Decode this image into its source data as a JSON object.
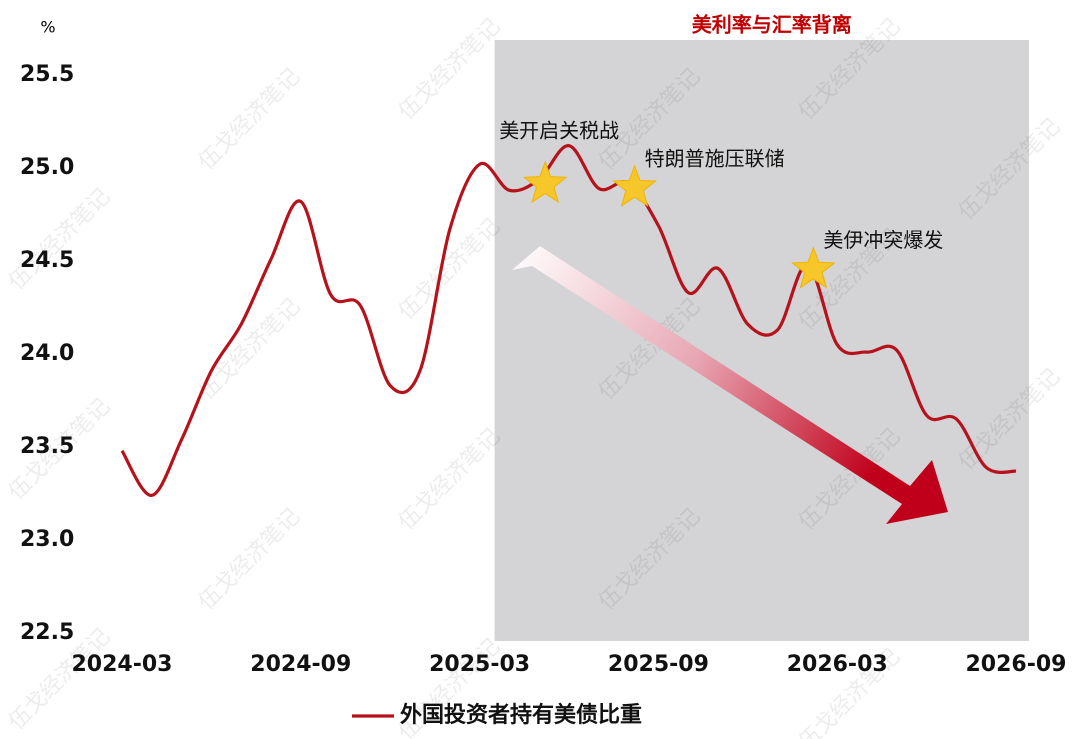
{
  "chart_data": {
    "type": "line",
    "y_unit": "%",
    "x": [
      "2024-03",
      "2024-04",
      "2024-05",
      "2024-06",
      "2024-07",
      "2024-08",
      "2024-09",
      "2024-10",
      "2024-11",
      "2024-12",
      "2025-01",
      "2025-02",
      "2025-03",
      "2025-04",
      "2025-05",
      "2025-06",
      "2025-07",
      "2025-08",
      "2025-09",
      "2025-10",
      "2025-11",
      "2025-12",
      "2026-01",
      "2026-02",
      "2026-03",
      "2026-04",
      "2026-05",
      "2026-06",
      "2026-07",
      "2026-08",
      "2026-09"
    ],
    "series": [
      {
        "name": "外国投资者持有美债比重",
        "color": "#b5121b",
        "values": [
          23.48,
          23.24,
          23.54,
          23.91,
          24.16,
          24.51,
          24.82,
          24.32,
          24.26,
          23.83,
          23.91,
          24.67,
          25.02,
          24.88,
          24.94,
          25.12,
          24.89,
          24.92,
          24.69,
          24.33,
          24.46,
          24.16,
          24.13,
          24.48,
          24.05,
          24.01,
          24.02,
          23.67,
          23.65,
          23.39,
          23.37
        ]
      }
    ],
    "ylim": [
      22.5,
      25.5
    ],
    "yticks": [
      22.5,
      {
        "value": 23,
        "label": "23.0"
      },
      23.5,
      {
        "value": 24,
        "label": "24.0"
      },
      24.5,
      {
        "value": 25,
        "label": "25.0"
      },
      25.5
    ],
    "xticks": [
      "2024-03",
      "2024-09",
      "2025-03",
      "2025-09",
      "2026-03",
      "2026-09"
    ],
    "shaded_region": {
      "from": "2025-03",
      "to": "2026-09",
      "label": "美利率与汇率背离",
      "color": "#d4d3d5"
    },
    "annotations": [
      {
        "x": "2025-05",
        "text": "美开启关税战"
      },
      {
        "x": "2025-08",
        "text": "特朗普施压联储"
      },
      {
        "x": "2026-02",
        "text": "美伊冲突爆发"
      }
    ],
    "watermark": "伍戈经济笔记",
    "grid": false
  }
}
